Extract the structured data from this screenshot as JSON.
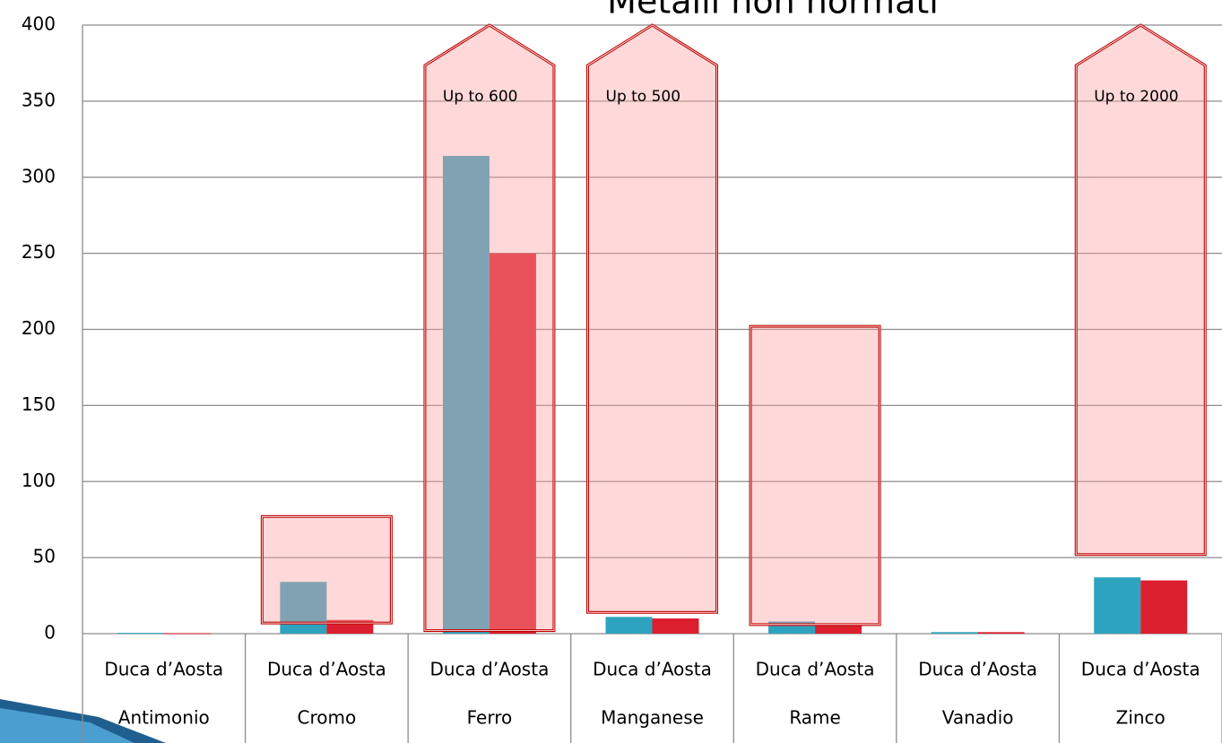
{
  "chart_data": {
    "type": "bar",
    "title": "Metalli non normati",
    "categories": [
      "Antimonio",
      "Cromo",
      "Ferro",
      "Manganese",
      "Rame",
      "Vanadio",
      "Zinco"
    ],
    "subcategories": [
      "Duca d’Aosta",
      "Duca d’Aosta",
      "Duca d’Aosta",
      "Duca d’Aosta",
      "Duca d’Aosta",
      "Duca d’Aosta",
      "Duca d’Aosta"
    ],
    "series": [
      {
        "color": "#2ea3bf",
        "values": [
          0.5,
          34,
          314,
          11,
          8,
          1,
          37
        ]
      },
      {
        "color": "#dc1f2e",
        "values": [
          0.3,
          9,
          250,
          10,
          6,
          1,
          35
        ]
      }
    ],
    "limit_ranges": [
      null,
      {
        "low": 7,
        "high": 77
      },
      {
        "low": 2,
        "high": 600,
        "label": "Up to 600"
      },
      {
        "low": 14,
        "high": 500,
        "label": "Up to 500"
      },
      {
        "low": 6,
        "high": 202
      },
      null,
      {
        "low": 52,
        "high": 2000,
        "label": "Up to 2000"
      }
    ],
    "limit_color": "#c00000",
    "ylim": [
      0,
      400
    ],
    "yticks": [
      0,
      50,
      100,
      150,
      200,
      250,
      300,
      350,
      400
    ],
    "grid": true
  }
}
